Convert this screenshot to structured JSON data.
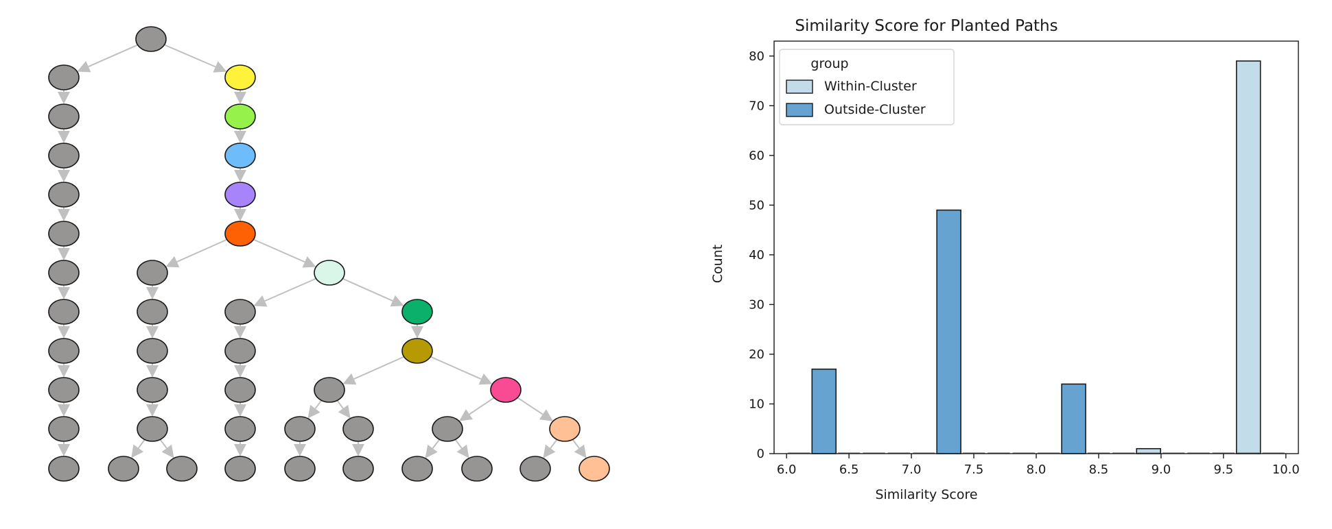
{
  "tree": {
    "node_default_color": "#979494",
    "edge_color": "#c0c0c0",
    "nodes": [
      {
        "id": "r",
        "color": "#979494"
      },
      {
        "id": "L1",
        "color": "#979494"
      },
      {
        "id": "L2",
        "color": "#979494"
      },
      {
        "id": "L3",
        "color": "#979494"
      },
      {
        "id": "L4",
        "color": "#979494"
      },
      {
        "id": "L5",
        "color": "#979494"
      },
      {
        "id": "L6",
        "color": "#979494"
      },
      {
        "id": "L7",
        "color": "#979494"
      },
      {
        "id": "L8",
        "color": "#979494"
      },
      {
        "id": "L9",
        "color": "#979494"
      },
      {
        "id": "L10",
        "color": "#979494"
      },
      {
        "id": "L11",
        "color": "#979494"
      },
      {
        "id": "y",
        "color": "#fff23a"
      },
      {
        "id": "g",
        "color": "#96f24a"
      },
      {
        "id": "b",
        "color": "#6ebcfa"
      },
      {
        "id": "p",
        "color": "#a884fa"
      },
      {
        "id": "o",
        "color": "#fe6104"
      },
      {
        "id": "A1",
        "color": "#979494"
      },
      {
        "id": "A2",
        "color": "#979494"
      },
      {
        "id": "A3",
        "color": "#979494"
      },
      {
        "id": "A4",
        "color": "#979494"
      },
      {
        "id": "A5",
        "color": "#979494"
      },
      {
        "id": "A6",
        "color": "#979494"
      },
      {
        "id": "A7",
        "color": "#979494"
      },
      {
        "id": "m",
        "color": "#d9f6e9"
      },
      {
        "id": "B1",
        "color": "#979494"
      },
      {
        "id": "B2",
        "color": "#979494"
      },
      {
        "id": "B3",
        "color": "#979494"
      },
      {
        "id": "B4",
        "color": "#979494"
      },
      {
        "id": "B5",
        "color": "#979494"
      },
      {
        "id": "dg",
        "color": "#0bb06a"
      },
      {
        "id": "ol",
        "color": "#b69a02"
      },
      {
        "id": "C1",
        "color": "#979494"
      },
      {
        "id": "C2",
        "color": "#979494"
      },
      {
        "id": "C3",
        "color": "#979494"
      },
      {
        "id": "C4",
        "color": "#979494"
      },
      {
        "id": "C5",
        "color": "#979494"
      },
      {
        "id": "pk",
        "color": "#f94b93"
      },
      {
        "id": "D1",
        "color": "#979494"
      },
      {
        "id": "D2",
        "color": "#979494"
      },
      {
        "id": "D3",
        "color": "#979494"
      },
      {
        "id": "pe",
        "color": "#ffc096"
      },
      {
        "id": "E1",
        "color": "#979494"
      },
      {
        "id": "E2",
        "color": "#ffc096"
      }
    ],
    "edges": [
      [
        "r",
        "L1"
      ],
      [
        "r",
        "y"
      ],
      [
        "L1",
        "L2"
      ],
      [
        "L2",
        "L3"
      ],
      [
        "L3",
        "L4"
      ],
      [
        "L4",
        "L5"
      ],
      [
        "L5",
        "L6"
      ],
      [
        "L6",
        "L7"
      ],
      [
        "L7",
        "L8"
      ],
      [
        "L8",
        "L9"
      ],
      [
        "L9",
        "L10"
      ],
      [
        "L10",
        "L11"
      ],
      [
        "y",
        "g"
      ],
      [
        "g",
        "b"
      ],
      [
        "b",
        "p"
      ],
      [
        "p",
        "o"
      ],
      [
        "o",
        "A1"
      ],
      [
        "o",
        "m"
      ],
      [
        "A1",
        "A2"
      ],
      [
        "A2",
        "A3"
      ],
      [
        "A3",
        "A4"
      ],
      [
        "A4",
        "A5"
      ],
      [
        "A5",
        "A6"
      ],
      [
        "A5",
        "A7"
      ],
      [
        "m",
        "B1"
      ],
      [
        "m",
        "dg"
      ],
      [
        "B1",
        "B2"
      ],
      [
        "B2",
        "B3"
      ],
      [
        "B3",
        "B4"
      ],
      [
        "B4",
        "B5"
      ],
      [
        "dg",
        "ol"
      ],
      [
        "ol",
        "C1"
      ],
      [
        "ol",
        "pk"
      ],
      [
        "C1",
        "C2"
      ],
      [
        "C1",
        "C4"
      ],
      [
        "C2",
        "C3"
      ],
      [
        "C4",
        "C5"
      ],
      [
        "pk",
        "D1"
      ],
      [
        "pk",
        "pe"
      ],
      [
        "D1",
        "D2"
      ],
      [
        "D1",
        "D3"
      ],
      [
        "pe",
        "E1"
      ],
      [
        "pe",
        "E2"
      ]
    ]
  },
  "chart_data": {
    "type": "bar",
    "title": "Similarity Score for Planted Paths",
    "xlabel": "Similarity Score",
    "ylabel": "Count",
    "xlim": [
      5.9,
      10.1
    ],
    "ylim": [
      0,
      83
    ],
    "xticks": [
      "6.0",
      "6.5",
      "7.0",
      "7.5",
      "8.0",
      "8.5",
      "9.0",
      "9.5",
      "10.0"
    ],
    "yticks": [
      "0",
      "10",
      "20",
      "30",
      "40",
      "50",
      "60",
      "70",
      "80"
    ],
    "bin_edges": [
      6.0,
      6.2,
      6.4,
      6.6,
      6.8,
      7.0,
      7.2,
      7.4,
      7.6,
      7.8,
      8.0,
      8.2,
      8.4,
      8.6,
      8.8,
      9.0,
      9.2,
      9.4,
      9.6,
      9.8,
      10.0
    ],
    "legend": {
      "title": "group",
      "position": "top-left",
      "entries": [
        "Within-Cluster",
        "Outside-Cluster"
      ]
    },
    "series": [
      {
        "name": "Within-Cluster",
        "color": "#c3dcea",
        "values": [
          0,
          0,
          0,
          0,
          0,
          0,
          0,
          0,
          0,
          0,
          0,
          0,
          0,
          0,
          1,
          0,
          0,
          0,
          79,
          0
        ]
      },
      {
        "name": "Outside-Cluster",
        "color": "#67a3d0",
        "values": [
          0,
          17,
          0,
          0,
          0,
          0,
          49,
          0,
          0,
          0,
          0,
          14,
          0,
          0,
          0,
          0,
          0,
          0,
          0,
          0
        ]
      }
    ]
  }
}
